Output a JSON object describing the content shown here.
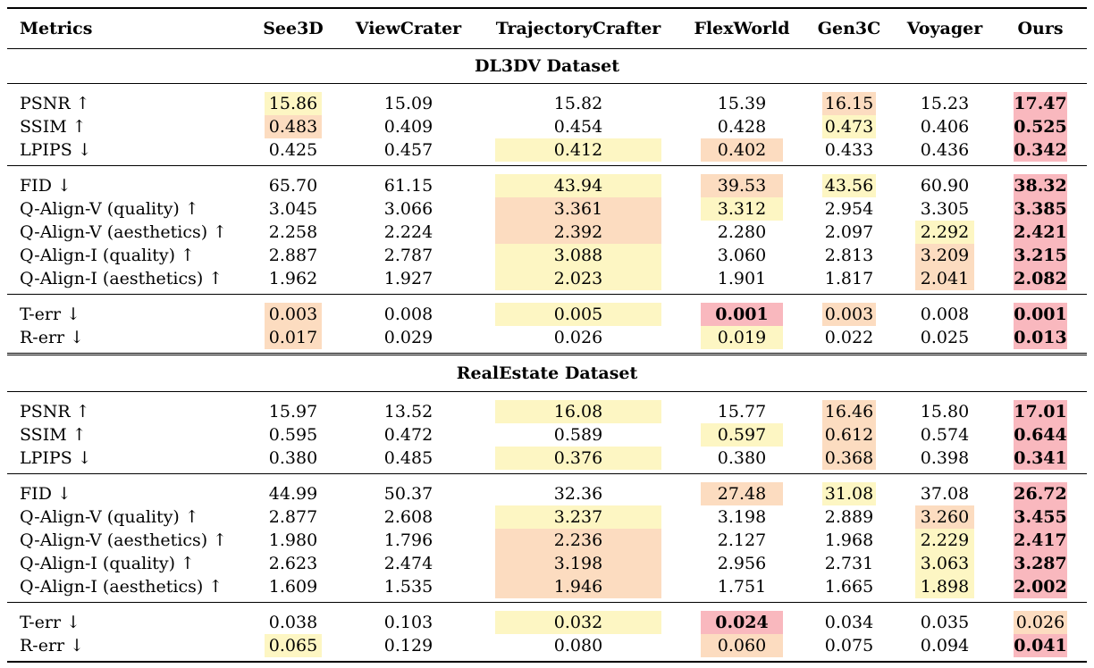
{
  "columns": [
    "Metrics",
    "See3D",
    "ViewCrater",
    "TrajectoryCrafter",
    "FlexWorld",
    "Gen3C",
    "Voyager",
    "Ours"
  ],
  "colors": {
    "yellow": "#fdf6c3",
    "orange": "#fcdcc0",
    "red": "#f9b8be"
  },
  "sections": [
    {
      "title": "DL3DV Dataset",
      "groups": [
        [
          {
            "metric": "PSNR ↑",
            "values": [
              "15.86",
              "15.09",
              "15.82",
              "15.39",
              "16.15",
              "15.23",
              "17.47"
            ],
            "highlight": [
              "yellow",
              "",
              "",
              "",
              "orange",
              "",
              "red"
            ],
            "bold": [
              false,
              false,
              false,
              false,
              false,
              false,
              true
            ]
          },
          {
            "metric": "SSIM ↑",
            "values": [
              "0.483",
              "0.409",
              "0.454",
              "0.428",
              "0.473",
              "0.406",
              "0.525"
            ],
            "highlight": [
              "orange",
              "",
              "",
              "",
              "yellow",
              "",
              "red"
            ],
            "bold": [
              false,
              false,
              false,
              false,
              false,
              false,
              true
            ]
          },
          {
            "metric": "LPIPS ↓",
            "values": [
              "0.425",
              "0.457",
              "0.412",
              "0.402",
              "0.433",
              "0.436",
              "0.342"
            ],
            "highlight": [
              "",
              "",
              "yellow",
              "orange",
              "",
              "",
              "red"
            ],
            "bold": [
              false,
              false,
              false,
              false,
              false,
              false,
              true
            ]
          }
        ],
        [
          {
            "metric": "FID ↓",
            "values": [
              "65.70",
              "61.15",
              "43.94",
              "39.53",
              "43.56",
              "60.90",
              "38.32"
            ],
            "highlight": [
              "",
              "",
              "yellow",
              "orange",
              "yellow",
              "",
              "red"
            ],
            "bold": [
              false,
              false,
              false,
              false,
              false,
              false,
              true
            ]
          },
          {
            "metric": "Q-Align-V (quality) ↑",
            "values": [
              "3.045",
              "3.066",
              "3.361",
              "3.312",
              "2.954",
              "3.305",
              "3.385"
            ],
            "highlight": [
              "",
              "",
              "orange",
              "yellow",
              "",
              "",
              "red"
            ],
            "bold": [
              false,
              false,
              false,
              false,
              false,
              false,
              true
            ]
          },
          {
            "metric": "Q-Align-V (aesthetics) ↑",
            "values": [
              "2.258",
              "2.224",
              "2.392",
              "2.280",
              "2.097",
              "2.292",
              "2.421"
            ],
            "highlight": [
              "",
              "",
              "orange",
              "",
              "",
              "yellow",
              "red"
            ],
            "bold": [
              false,
              false,
              false,
              false,
              false,
              false,
              true
            ]
          },
          {
            "metric": "Q-Align-I (quality) ↑",
            "values": [
              "2.887",
              "2.787",
              "3.088",
              "3.060",
              "2.813",
              "3.209",
              "3.215"
            ],
            "highlight": [
              "",
              "",
              "yellow",
              "",
              "",
              "orange",
              "red"
            ],
            "bold": [
              false,
              false,
              false,
              false,
              false,
              false,
              true
            ]
          },
          {
            "metric": "Q-Align-I (aesthetics) ↑",
            "values": [
              "1.962",
              "1.927",
              "2.023",
              "1.901",
              "1.817",
              "2.041",
              "2.082"
            ],
            "highlight": [
              "",
              "",
              "yellow",
              "",
              "",
              "orange",
              "red"
            ],
            "bold": [
              false,
              false,
              false,
              false,
              false,
              false,
              true
            ]
          }
        ],
        [
          {
            "metric": "T-err ↓",
            "values": [
              "0.003",
              "0.008",
              "0.005",
              "0.001",
              "0.003",
              "0.008",
              "0.001"
            ],
            "highlight": [
              "orange",
              "",
              "yellow",
              "red",
              "orange",
              "",
              "red"
            ],
            "bold": [
              false,
              false,
              false,
              true,
              false,
              false,
              true
            ]
          },
          {
            "metric": "R-err ↓",
            "values": [
              "0.017",
              "0.029",
              "0.026",
              "0.019",
              "0.022",
              "0.025",
              "0.013"
            ],
            "highlight": [
              "orange",
              "",
              "",
              "yellow",
              "",
              "",
              "red"
            ],
            "bold": [
              false,
              false,
              false,
              false,
              false,
              false,
              true
            ]
          }
        ]
      ]
    },
    {
      "title": "RealEstate Dataset",
      "groups": [
        [
          {
            "metric": "PSNR ↑",
            "values": [
              "15.97",
              "13.52",
              "16.08",
              "15.77",
              "16.46",
              "15.80",
              "17.01"
            ],
            "highlight": [
              "",
              "",
              "yellow",
              "",
              "orange",
              "",
              "red"
            ],
            "bold": [
              false,
              false,
              false,
              false,
              false,
              false,
              true
            ]
          },
          {
            "metric": "SSIM ↑",
            "values": [
              "0.595",
              "0.472",
              "0.589",
              "0.597",
              "0.612",
              "0.574",
              "0.644"
            ],
            "highlight": [
              "",
              "",
              "",
              "yellow",
              "orange",
              "",
              "red"
            ],
            "bold": [
              false,
              false,
              false,
              false,
              false,
              false,
              true
            ]
          },
          {
            "metric": "LPIPS ↓",
            "values": [
              "0.380",
              "0.485",
              "0.376",
              "0.380",
              "0.368",
              "0.398",
              "0.341"
            ],
            "highlight": [
              "",
              "",
              "yellow",
              "",
              "orange",
              "",
              "red"
            ],
            "bold": [
              false,
              false,
              false,
              false,
              false,
              false,
              true
            ]
          }
        ],
        [
          {
            "metric": "FID ↓",
            "values": [
              "44.99",
              "50.37",
              "32.36",
              "27.48",
              "31.08",
              "37.08",
              "26.72"
            ],
            "highlight": [
              "",
              "",
              "",
              "orange",
              "yellow",
              "",
              "red"
            ],
            "bold": [
              false,
              false,
              false,
              false,
              false,
              false,
              true
            ]
          },
          {
            "metric": "Q-Align-V (quality) ↑",
            "values": [
              "2.877",
              "2.608",
              "3.237",
              "3.198",
              "2.889",
              "3.260",
              "3.455"
            ],
            "highlight": [
              "",
              "",
              "yellow",
              "",
              "",
              "orange",
              "red"
            ],
            "bold": [
              false,
              false,
              false,
              false,
              false,
              false,
              true
            ]
          },
          {
            "metric": "Q-Align-V (aesthetics) ↑",
            "values": [
              "1.980",
              "1.796",
              "2.236",
              "2.127",
              "1.968",
              "2.229",
              "2.417"
            ],
            "highlight": [
              "",
              "",
              "orange",
              "",
              "",
              "yellow",
              "red"
            ],
            "bold": [
              false,
              false,
              false,
              false,
              false,
              false,
              true
            ]
          },
          {
            "metric": "Q-Align-I (quality) ↑",
            "values": [
              "2.623",
              "2.474",
              "3.198",
              "2.956",
              "2.731",
              "3.063",
              "3.287"
            ],
            "highlight": [
              "",
              "",
              "orange",
              "",
              "",
              "yellow",
              "red"
            ],
            "bold": [
              false,
              false,
              false,
              false,
              false,
              false,
              true
            ]
          },
          {
            "metric": "Q-Align-I (aesthetics) ↑",
            "values": [
              "1.609",
              "1.535",
              "1.946",
              "1.751",
              "1.665",
              "1.898",
              "2.002"
            ],
            "highlight": [
              "",
              "",
              "orange",
              "",
              "",
              "yellow",
              "red"
            ],
            "bold": [
              false,
              false,
              false,
              false,
              false,
              false,
              true
            ]
          }
        ],
        [
          {
            "metric": "T-err ↓",
            "values": [
              "0.038",
              "0.103",
              "0.032",
              "0.024",
              "0.034",
              "0.035",
              "0.026"
            ],
            "highlight": [
              "",
              "",
              "yellow",
              "red",
              "",
              "",
              "orange"
            ],
            "bold": [
              false,
              false,
              false,
              true,
              false,
              false,
              false
            ]
          },
          {
            "metric": "R-err ↓",
            "values": [
              "0.065",
              "0.129",
              "0.080",
              "0.060",
              "0.075",
              "0.094",
              "0.041"
            ],
            "highlight": [
              "yellow",
              "",
              "",
              "orange",
              "",
              "",
              "red"
            ],
            "bold": [
              false,
              false,
              false,
              false,
              false,
              false,
              true
            ]
          }
        ]
      ]
    }
  ]
}
